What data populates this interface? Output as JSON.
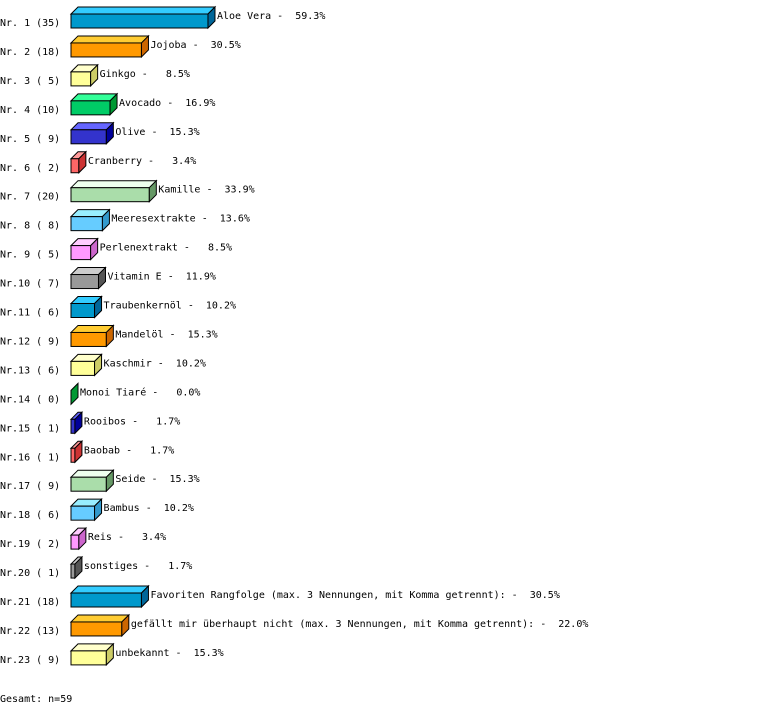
{
  "chart_data": {
    "type": "bar",
    "orientation": "horizontal",
    "style": "3d",
    "rows": [
      {
        "rank": "Nr. 1",
        "count": 35,
        "label": "Aloe Vera",
        "percent": 59.3
      },
      {
        "rank": "Nr. 2",
        "count": 18,
        "label": "Jojoba",
        "percent": 30.5
      },
      {
        "rank": "Nr. 3",
        "count": 5,
        "label": "Ginkgo",
        "percent": 8.5
      },
      {
        "rank": "Nr. 4",
        "count": 10,
        "label": "Avocado",
        "percent": 16.9
      },
      {
        "rank": "Nr. 5",
        "count": 9,
        "label": "Olive",
        "percent": 15.3
      },
      {
        "rank": "Nr. 6",
        "count": 2,
        "label": "Cranberry",
        "percent": 3.4
      },
      {
        "rank": "Nr. 7",
        "count": 20,
        "label": "Kamille",
        "percent": 33.9
      },
      {
        "rank": "Nr. 8",
        "count": 8,
        "label": "Meeresextrakte",
        "percent": 13.6
      },
      {
        "rank": "Nr. 9",
        "count": 5,
        "label": "Perlenextrakt",
        "percent": 8.5
      },
      {
        "rank": "Nr.10",
        "count": 7,
        "label": "Vitamin E",
        "percent": 11.9
      },
      {
        "rank": "Nr.11",
        "count": 6,
        "label": "Traubenkernöl",
        "percent": 10.2
      },
      {
        "rank": "Nr.12",
        "count": 9,
        "label": "Mandelöl",
        "percent": 15.3
      },
      {
        "rank": "Nr.13",
        "count": 6,
        "label": "Kaschmir",
        "percent": 10.2
      },
      {
        "rank": "Nr.14",
        "count": 0,
        "label": "Monoi Tiaré",
        "percent": 0.0
      },
      {
        "rank": "Nr.15",
        "count": 1,
        "label": "Rooibos",
        "percent": 1.7
      },
      {
        "rank": "Nr.16",
        "count": 1,
        "label": "Baobab",
        "percent": 1.7
      },
      {
        "rank": "Nr.17",
        "count": 9,
        "label": "Seide",
        "percent": 15.3
      },
      {
        "rank": "Nr.18",
        "count": 6,
        "label": "Bambus",
        "percent": 10.2
      },
      {
        "rank": "Nr.19",
        "count": 2,
        "label": "Reis",
        "percent": 3.4
      },
      {
        "rank": "Nr.20",
        "count": 1,
        "label": "sonstiges",
        "percent": 1.7
      },
      {
        "rank": "Nr.21",
        "count": 18,
        "label": "Favoriten Rangfolge (max. 3 Nennungen, mit Komma getrennt):",
        "percent": 30.5
      },
      {
        "rank": "Nr.22",
        "count": 13,
        "label": "gefällt mir überhaupt nicht (max. 3 Nennungen, mit Komma getrennt):",
        "percent": 22.0
      },
      {
        "rank": "Nr.23",
        "count": 9,
        "label": "unbekannt",
        "percent": 15.3
      }
    ],
    "palette": [
      {
        "front": "#0099cc",
        "top": "#33ccff",
        "side": "#006699"
      },
      {
        "front": "#ff9900",
        "top": "#ffcc33",
        "side": "#cc6600"
      },
      {
        "front": "#ffff99",
        "top": "#ffffcc",
        "side": "#cccc66"
      },
      {
        "front": "#00cc66",
        "top": "#33ff99",
        "side": "#009933"
      },
      {
        "front": "#3333cc",
        "top": "#6666ff",
        "side": "#000099"
      },
      {
        "front": "#ff6666",
        "top": "#ff9999",
        "side": "#cc3333"
      },
      {
        "front": "#aaddaa",
        "top": "#eeffee",
        "side": "#669966"
      },
      {
        "front": "#66ccff",
        "top": "#99eeff",
        "side": "#3399cc"
      },
      {
        "front": "#ff99ff",
        "top": "#ffccff",
        "side": "#cc66cc"
      },
      {
        "front": "#999999",
        "top": "#cccccc",
        "side": "#555555"
      }
    ],
    "footer": "Gesamt: n=59"
  }
}
